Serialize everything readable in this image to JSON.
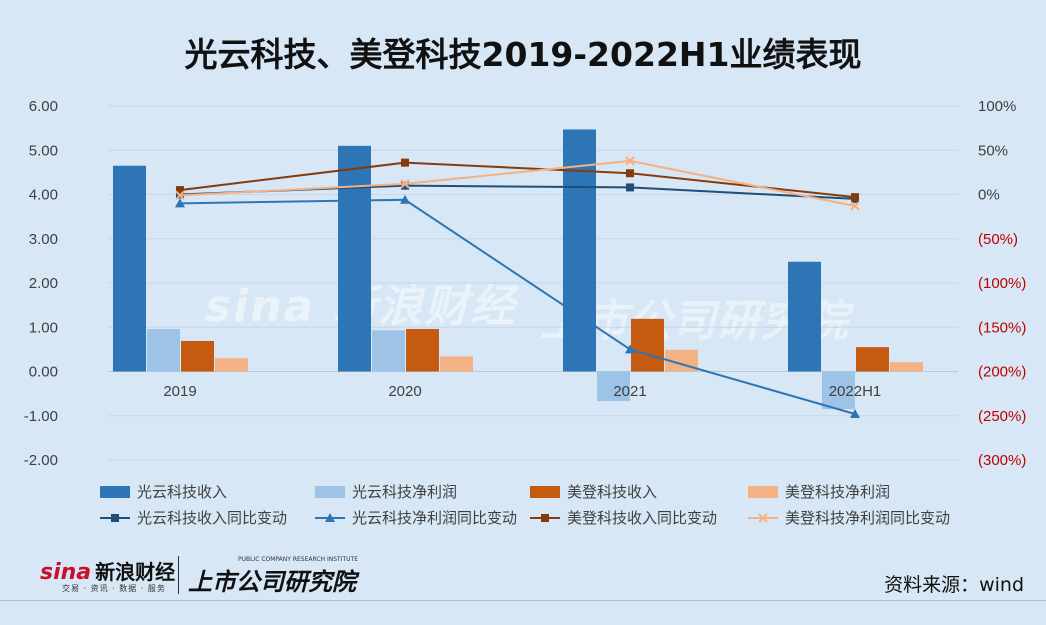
{
  "title": "光云科技、美登科技2019-2022H1业绩表现",
  "source": "资料来源：wind",
  "watermark": {
    "brand": "sina 新浪财经",
    "column": "上市公司研究院",
    "logo_brand_en": "sina",
    "logo_brand_cn": "新浪财经",
    "logo_sub": "交易 · 资讯 · 数据 · 服务",
    "logo_column": "上市公司研究院",
    "logo_column_en": "PUBLIC COMPANY RESEARCH INSTITUTE"
  },
  "colors": {
    "gy_rev": "#2e75b6",
    "gy_np": "#9dc3e6",
    "md_rev": "#c55a11",
    "md_np": "#f4b183",
    "line_gy_rev": "#1f4e79",
    "line_gy_np": "#2e75b6",
    "line_md_rev": "#843c0c",
    "line_md_np": "#f4b183",
    "neg_axis": "#c00000"
  },
  "chart_data": {
    "type": "bar",
    "title": "光云科技、美登科技2019-2022H1业绩表现",
    "categories": [
      "2019",
      "2020",
      "2021",
      "2022H1"
    ],
    "ylim": [
      -2,
      6
    ],
    "y2lim": [
      -300,
      100
    ],
    "y_ticks": [
      "6.00",
      "5.00",
      "4.00",
      "3.00",
      "2.00",
      "1.00",
      "0.00",
      "-1.00",
      "-2.00"
    ],
    "y2_ticks": [
      "100%",
      "50%",
      "0%",
      "(50%)",
      "(100%)",
      "(150%)",
      "(200%)",
      "(250%)",
      "(300%)"
    ],
    "series": [
      {
        "name": "光云科技收入",
        "type": "bar",
        "axis": "left",
        "values": [
          4.65,
          5.1,
          5.47,
          2.48
        ]
      },
      {
        "name": "光云科技净利润",
        "type": "bar",
        "axis": "left",
        "values": [
          0.96,
          0.93,
          -0.67,
          -0.85
        ]
      },
      {
        "name": "美登科技收入",
        "type": "bar",
        "axis": "left",
        "values": [
          0.69,
          0.96,
          1.19,
          0.55
        ]
      },
      {
        "name": "美登科技净利润",
        "type": "bar",
        "axis": "left",
        "values": [
          0.3,
          0.34,
          0.49,
          0.21
        ]
      },
      {
        "name": "光云科技收入同比变动",
        "type": "line",
        "axis": "right",
        "values": [
          0,
          10,
          8,
          -5
        ]
      },
      {
        "name": "光云科技净利润同比变动",
        "type": "line",
        "axis": "right",
        "values": [
          -10,
          -6,
          -175,
          -248
        ]
      },
      {
        "name": "美登科技收入同比变动",
        "type": "line",
        "axis": "right",
        "values": [
          5,
          36,
          24,
          -3
        ]
      },
      {
        "name": "美登科技净利润同比变动",
        "type": "line",
        "axis": "right",
        "values": [
          -1,
          12,
          38,
          -13
        ]
      }
    ],
    "grid": true,
    "legend_position": "bottom"
  }
}
